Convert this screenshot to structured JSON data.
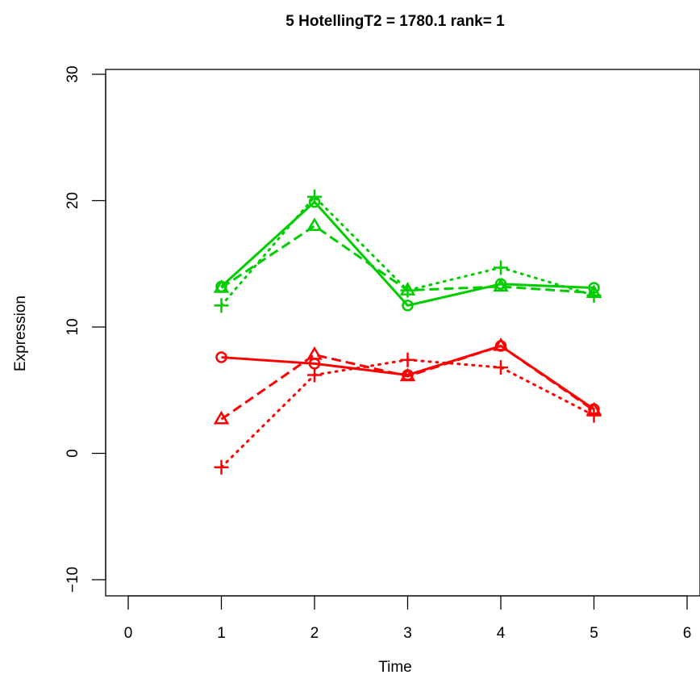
{
  "chart_data": {
    "type": "line",
    "title": "5  HotellingT2 = 1780.1  rank= 1",
    "xlabel": "Time",
    "ylabel": "Expression",
    "xlim": [
      0,
      6
    ],
    "ylim": [
      -10,
      30
    ],
    "xticks": [
      "0",
      "1",
      "2",
      "3",
      "4",
      "5",
      "6"
    ],
    "yticks": [
      "−10",
      "0",
      "10",
      "20",
      "30"
    ],
    "grid": false,
    "legend": "none",
    "x": [
      1,
      2,
      3,
      4,
      5
    ],
    "series": [
      {
        "color": "#00CD00",
        "linestyle": "solid",
        "marker": "circle",
        "values": [
          13.2,
          19.9,
          11.7,
          13.4,
          13.1
        ]
      },
      {
        "color": "#00CD00",
        "linestyle": "dashed",
        "marker": "triangle",
        "values": [
          13.1,
          18.0,
          12.9,
          13.2,
          12.7
        ]
      },
      {
        "color": "#00CD00",
        "linestyle": "dotted",
        "marker": "plus",
        "values": [
          11.7,
          20.3,
          12.9,
          14.7,
          12.5
        ]
      },
      {
        "color": "#FF0000",
        "linestyle": "solid",
        "marker": "circle",
        "values": [
          7.6,
          7.1,
          6.2,
          8.5,
          3.5
        ]
      },
      {
        "color": "#FF0000",
        "linestyle": "dashed",
        "marker": "triangle",
        "values": [
          2.7,
          7.8,
          6.1,
          8.5,
          3.4
        ]
      },
      {
        "color": "#FF0000",
        "linestyle": "dotted",
        "marker": "plus",
        "values": [
          -1.1,
          6.2,
          7.4,
          6.8,
          3.0
        ]
      }
    ]
  }
}
